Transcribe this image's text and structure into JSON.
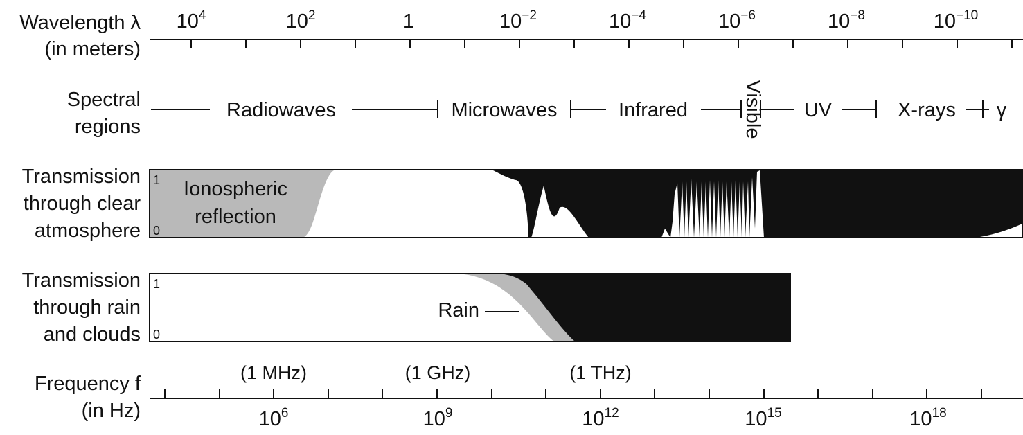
{
  "row_labels": {
    "wavelength": [
      "Wavelength λ",
      "(in meters)"
    ],
    "spectral": [
      "Spectral",
      "regions"
    ],
    "transmission_clear": [
      "Transmission",
      "through clear",
      "atmosphere"
    ],
    "transmission_rain": [
      "Transmission",
      "through rain",
      "and clouds"
    ],
    "frequency": [
      "Frequency f",
      "(in Hz)"
    ]
  },
  "wavelength_axis": {
    "ticks": [
      {
        "base": "10",
        "exp": "4"
      },
      {
        "base": "10",
        "exp": "2"
      },
      {
        "base": "1",
        "exp": ""
      },
      {
        "base": "10",
        "exp": "−2"
      },
      {
        "base": "10",
        "exp": "−4"
      },
      {
        "base": "10",
        "exp": "−6"
      },
      {
        "base": "10",
        "exp": "−8"
      },
      {
        "base": "10",
        "exp": "−10"
      }
    ]
  },
  "spectral_regions": [
    "Radiowaves",
    "Microwaves",
    "Infrared",
    "Visible",
    "UV",
    "X-rays",
    "γ"
  ],
  "transmission_clear": {
    "scale_top": "1",
    "scale_bottom": "0",
    "annotation": [
      "Ionospheric",
      "reflection"
    ]
  },
  "transmission_rain": {
    "scale_top": "1",
    "scale_bottom": "0",
    "annotation": "Rain"
  },
  "frequency_axis": {
    "notes": [
      "(1 MHz)",
      "(1 GHz)",
      "(1 THz)"
    ],
    "ticks": [
      {
        "base": "10",
        "exp": "6"
      },
      {
        "base": "10",
        "exp": "9"
      },
      {
        "base": "10",
        "exp": "12"
      },
      {
        "base": "10",
        "exp": "15"
      },
      {
        "base": "10",
        "exp": "18"
      }
    ]
  },
  "colors": {
    "ink": "#111111",
    "absorption": "#111111",
    "ionospheric": "#b9b9b9",
    "rain": "#b9b9b9"
  }
}
